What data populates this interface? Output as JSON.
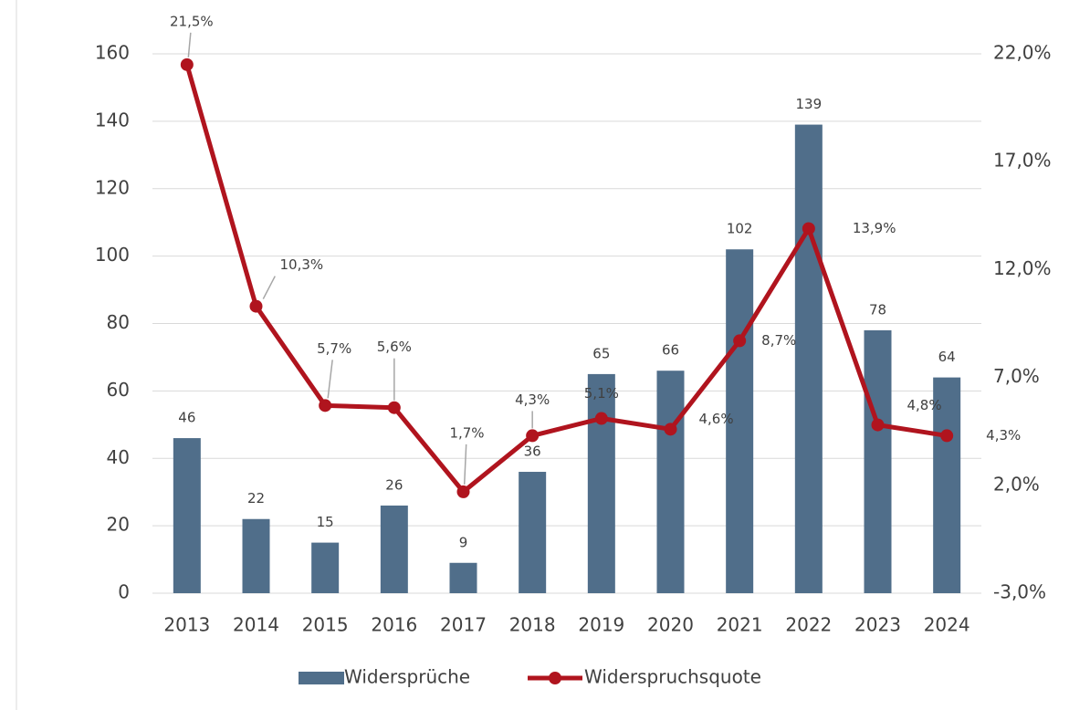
{
  "chart_data": {
    "type": "bar-line",
    "categories": [
      "2013",
      "2014",
      "2015",
      "2016",
      "2017",
      "2018",
      "2019",
      "2020",
      "2021",
      "2022",
      "2023",
      "2024"
    ],
    "series": [
      {
        "name": "Widersprüche",
        "type": "bar",
        "color": "#506e8a",
        "values": [
          46,
          22,
          15,
          26,
          9,
          36,
          65,
          66,
          102,
          139,
          78,
          64
        ]
      },
      {
        "name": "Widerspruchsquote",
        "type": "line",
        "axis": "y2",
        "color": "#b0141e",
        "values": [
          21.5,
          10.3,
          5.7,
          5.6,
          1.7,
          4.3,
          5.1,
          4.6,
          8.7,
          13.9,
          4.8,
          4.3
        ],
        "value_labels": [
          "21,5%",
          "10,3%",
          "5,7%",
          "5,6%",
          "1,7%",
          "4,3%",
          "5,1%",
          "4,6%",
          "8,7%",
          "13,9%",
          "4,8%",
          "4,3%"
        ]
      }
    ],
    "ylim": [
      0,
      160
    ],
    "yticks": [
      0,
      20,
      40,
      60,
      80,
      100,
      120,
      140,
      160
    ],
    "y2lim": [
      -3,
      22
    ],
    "y2ticks": [
      {
        "value": -3,
        "label": "-3,0%"
      },
      {
        "value": 2,
        "label": "2,0%"
      },
      {
        "value": 7,
        "label": "7,0%"
      },
      {
        "value": 12,
        "label": "12,0%"
      },
      {
        "value": 17,
        "label": "17,0%"
      },
      {
        "value": 22,
        "label": "22,0%"
      }
    ],
    "grid": true,
    "legend": "bottom"
  }
}
